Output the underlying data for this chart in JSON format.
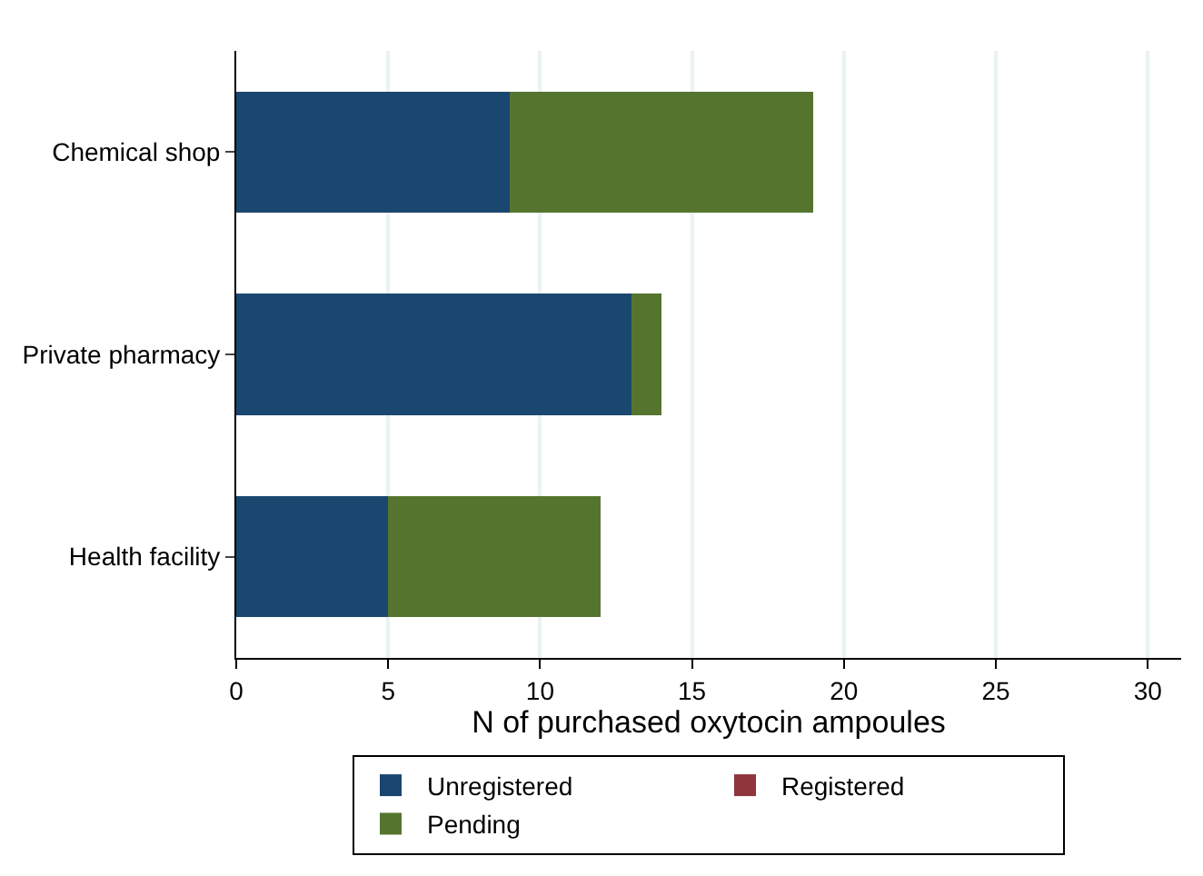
{
  "chart_data": {
    "type": "bar",
    "orientation": "horizontal",
    "stacked": true,
    "xlabel": "N of purchased oxytocin ampoules",
    "categories": [
      "Chemical shop",
      "Private pharmacy",
      "Health facility"
    ],
    "series": [
      {
        "name": "Unregistered",
        "color": "#1a476f",
        "values": [
          9,
          13,
          5
        ]
      },
      {
        "name": "Registered",
        "color": "#90353b",
        "values": [
          0,
          0,
          0
        ]
      },
      {
        "name": "Pending",
        "color": "#55752f",
        "values": [
          10,
          1,
          7
        ]
      }
    ],
    "xlim": [
      0,
      31.1
    ],
    "xticks": [
      0,
      5,
      10,
      15,
      20,
      25,
      30
    ],
    "grid": "x",
    "legend": "bottom"
  }
}
